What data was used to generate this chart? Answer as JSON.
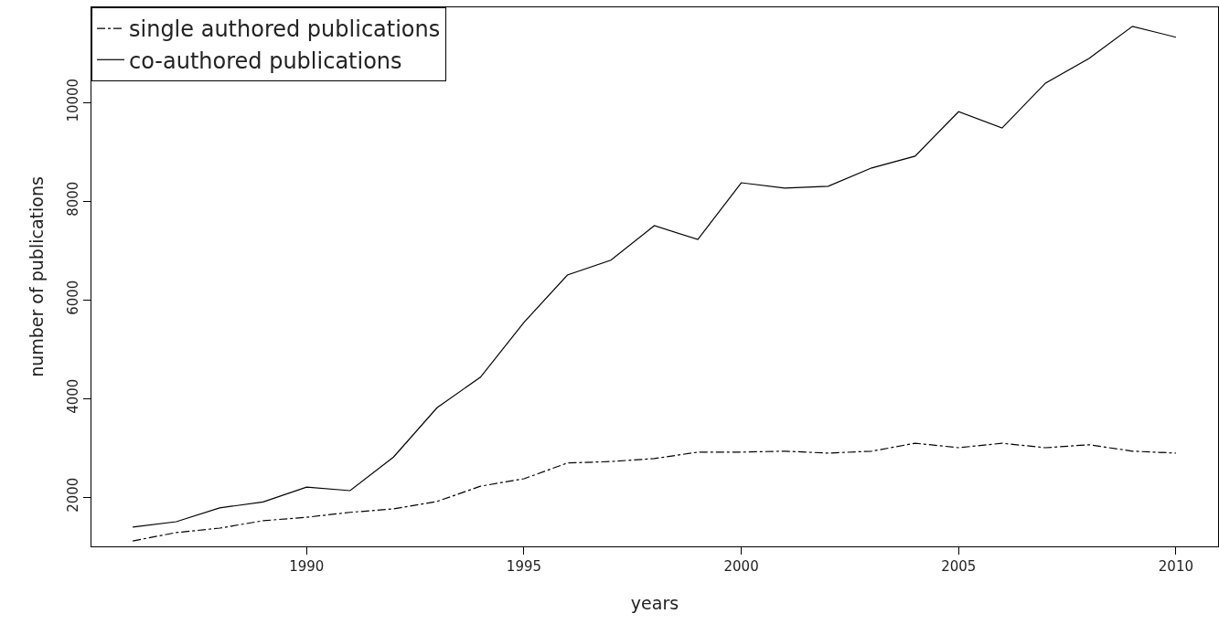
{
  "chart_data": {
    "type": "line",
    "xlabel": "years",
    "ylabel": "number of publications",
    "x": [
      1986,
      1987,
      1988,
      1989,
      1990,
      1991,
      1992,
      1993,
      1994,
      1995,
      1996,
      1997,
      1998,
      1999,
      2000,
      2001,
      2002,
      2003,
      2004,
      2005,
      2006,
      2007,
      2008,
      2009,
      2010
    ],
    "series": [
      {
        "name": "single authored publications",
        "color": "#000000",
        "line_style": "dashdot",
        "values": [
          1110,
          1280,
          1370,
          1520,
          1590,
          1690,
          1760,
          1910,
          2220,
          2370,
          2690,
          2720,
          2780,
          2910,
          2910,
          2930,
          2890,
          2930,
          3090,
          3000,
          3090,
          3000,
          3060,
          2930,
          2890
        ]
      },
      {
        "name": "co-authored publications",
        "color": "#000000",
        "line_style": "solid",
        "values": [
          1390,
          1500,
          1780,
          1900,
          2200,
          2130,
          2810,
          3810,
          4430,
          5540,
          6500,
          6800,
          7500,
          7220,
          8370,
          8260,
          8300,
          8670,
          8910,
          9810,
          9480,
          10390,
          10890,
          11540,
          11320
        ]
      }
    ],
    "xlim": [
      1985.05,
      2010.97
    ],
    "xticks": [
      1990,
      1995,
      2000,
      2005,
      2010
    ],
    "ylim": [
      1000,
      11926
    ],
    "yticks": [
      2000,
      4000,
      6000,
      8000,
      10000
    ],
    "grid": false,
    "legend": "top left",
    "marker": "none"
  }
}
